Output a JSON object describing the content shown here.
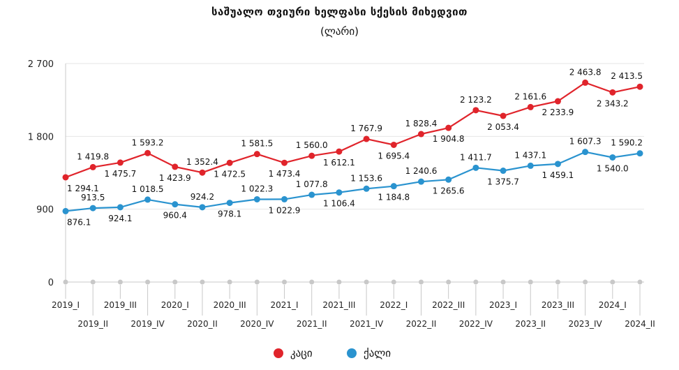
{
  "colors": {
    "men": "#e0242b",
    "women": "#2a93cf",
    "grid": "#e6e6e6",
    "axis": "#c8c8c8"
  },
  "chart_data": {
    "type": "line",
    "title": "საშუალო თვიური ხელფასი სქესის მიხედვით",
    "subtitle": "(ლარი)",
    "ylim": [
      0,
      2700
    ],
    "yticks": [
      0,
      900,
      1800,
      2700
    ],
    "ytick_labels": [
      "0",
      "900",
      "1 800",
      "2 700"
    ],
    "grid": true,
    "legend_position": "bottom-center",
    "categories": [
      "2019_I",
      "2019_II",
      "2019_III",
      "2019_IV",
      "2020_I",
      "2020_II",
      "2020_III",
      "2020_IV",
      "2021_I",
      "2021_II",
      "2021_III",
      "2021_IV",
      "2022_I",
      "2022_II",
      "2022_III",
      "2022_IV",
      "2023_I",
      "2023_II",
      "2023_III",
      "2023_IV",
      "2024_I",
      "2024_II"
    ],
    "series": [
      {
        "name": "კაცი",
        "color": "#e0242b",
        "values": [
          1294.1,
          1419.8,
          1475.7,
          1593.2,
          1423.9,
          1352.4,
          1472.5,
          1581.5,
          1473.4,
          1560.0,
          1612.1,
          1767.9,
          1695.4,
          1828.4,
          1904.8,
          2123.2,
          2053.4,
          2161.6,
          2233.9,
          2463.8,
          2343.2,
          2413.5
        ],
        "labels": [
          "1 294.1",
          "1 419.8",
          "1 475.7",
          "1 593.2",
          "1 423.9",
          "1 352.4",
          "1 472.5",
          "1 581.5",
          "1 473.4",
          "1 560.0",
          "1 612.1",
          "1 767.9",
          "1 695.4",
          "1 828.4",
          "1 904.8",
          "2 123.2",
          "2 053.4",
          "2 161.6",
          "2 233.9",
          "2 463.8",
          "2 343.2",
          "2 413.5"
        ],
        "label_pos": [
          "below",
          "above",
          "below",
          "above",
          "below",
          "above",
          "below",
          "above",
          "below",
          "above",
          "below",
          "above",
          "below",
          "above",
          "below",
          "above",
          "below",
          "above",
          "below",
          "above",
          "below",
          "above"
        ]
      },
      {
        "name": "ქალი",
        "color": "#2a93cf",
        "values": [
          876.1,
          913.5,
          924.1,
          1018.5,
          960.4,
          924.2,
          978.1,
          1022.3,
          1022.9,
          1077.8,
          1106.4,
          1153.6,
          1184.8,
          1240.6,
          1265.6,
          1411.7,
          1375.7,
          1437.1,
          1459.1,
          1607.3,
          1540.0,
          1590.2
        ],
        "labels": [
          "876.1",
          "913.5",
          "924.1",
          "1 018.5",
          "960.4",
          "924.2",
          "978.1",
          "1 022.3",
          "1 022.9",
          "1 077.8",
          "1 106.4",
          "1 153.6",
          "1 184.8",
          "1 240.6",
          "1 265.6",
          "1 411.7",
          "1 375.7",
          "1 437.1",
          "1 459.1",
          "1 607.3",
          "1 540.0",
          "1 590.2"
        ],
        "label_pos": [
          "below",
          "above",
          "below",
          "above",
          "below",
          "above",
          "below",
          "above",
          "below",
          "above",
          "below",
          "above",
          "below",
          "above",
          "below",
          "above",
          "below",
          "above",
          "below",
          "above",
          "below",
          "above"
        ]
      }
    ]
  }
}
